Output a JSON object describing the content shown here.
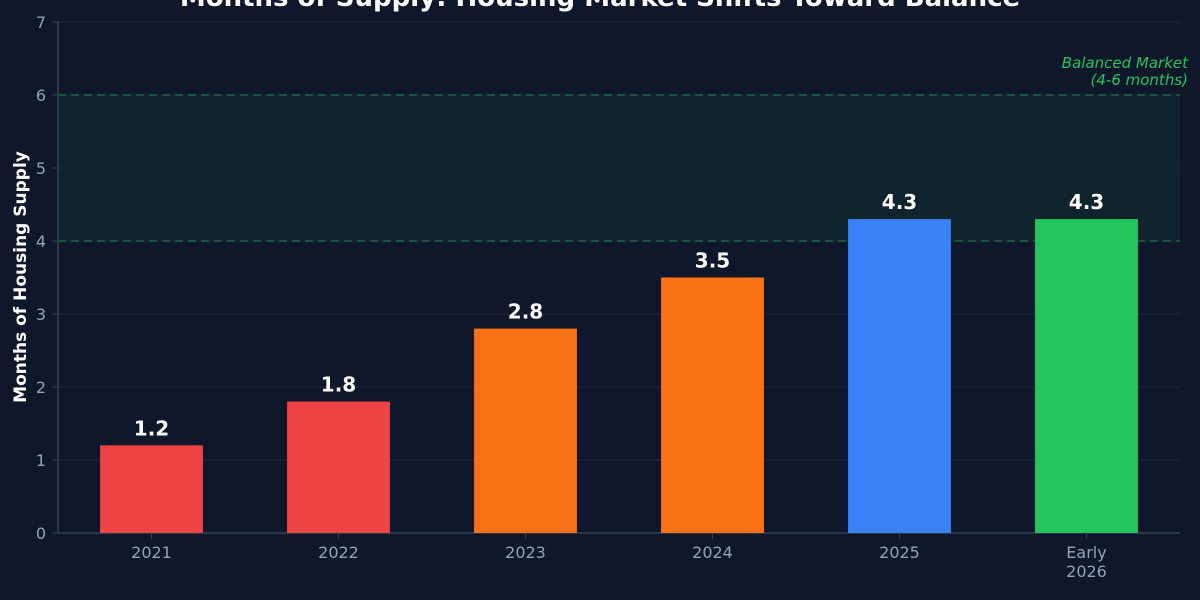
{
  "chart_data": {
    "type": "bar",
    "title": "Months of Supply: Housing Market Shifts Toward Balance",
    "xlabel": "",
    "ylabel": "Months of Housing Supply",
    "ylim": [
      0,
      7
    ],
    "yticks": [
      0,
      1,
      2,
      3,
      4,
      5,
      6,
      7
    ],
    "categories": [
      [
        "2021"
      ],
      [
        "2022"
      ],
      [
        "2023"
      ],
      [
        "2024"
      ],
      [
        "2025"
      ],
      [
        "Early",
        "2026"
      ]
    ],
    "values": [
      1.2,
      1.8,
      2.8,
      3.5,
      4.3,
      4.3
    ],
    "value_labels": [
      "1.2",
      "1.8",
      "2.8",
      "3.5",
      "4.3",
      "4.3"
    ],
    "bar_colors": [
      "#ef4444",
      "#ef4444",
      "#f97316",
      "#f97316",
      "#3b82f6",
      "#22c55e"
    ],
    "grid": true,
    "reference_band": {
      "from": 4,
      "to": 6,
      "label_lines": [
        "Balanced Market",
        "(4-6 months)"
      ],
      "color": "#22c55e",
      "line_color": "#15803d"
    }
  },
  "colors": {
    "background": "#0f172a",
    "grid": "#1e293b",
    "axis": "#334155",
    "tick_text": "#94a3b8",
    "text": "#ffffff"
  }
}
